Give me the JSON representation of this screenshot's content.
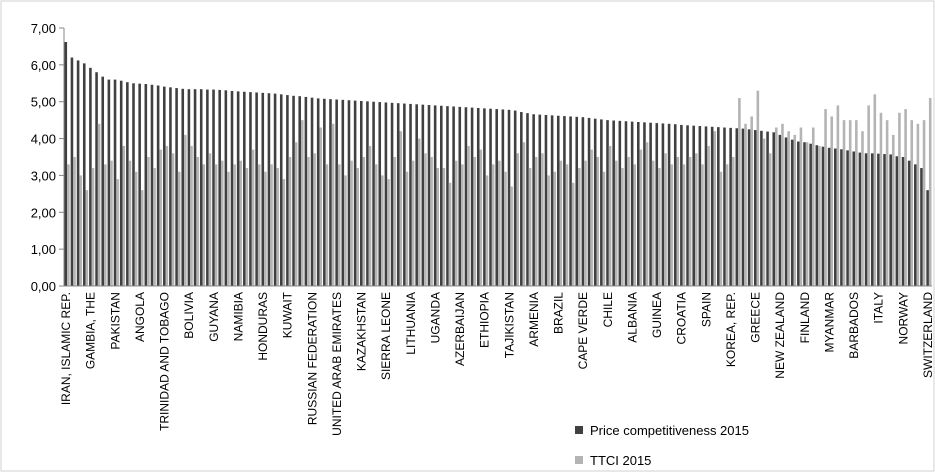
{
  "chart_data": {
    "type": "bar",
    "ylim": [
      0,
      7
    ],
    "yticks": [
      "0,00",
      "1,00",
      "2,00",
      "3,00",
      "4,00",
      "5,00",
      "6,00",
      "7,00"
    ],
    "grid": false,
    "legend_position": "bottom-right",
    "labeled_categories": [
      "IRAN, ISLAMIC REP.",
      "GAMBIA, THE",
      "PAKISTAN",
      "ANGOLA",
      "TRINIDAD AND TOBAGO",
      "BOLIVIA",
      "GUYANA",
      "NAMIBIA",
      "HONDURAS",
      "KUWAIT",
      "RUSSIAN FEDERATION",
      "UNITED ARAB EMIRATES",
      "KAZAKHSTAN",
      "SIERRA LEONE",
      "LITHUANIA",
      "UGANDA",
      "AZERBAIJAN",
      "ETHIOPIA",
      "TAJIKISTAN",
      "ARMENIA",
      "BRAZIL",
      "CAPE VERDE",
      "CHILE",
      "ALBANIA",
      "GUINEA",
      "CROATIA",
      "SPAIN",
      "KOREA, REP.",
      "GREECE",
      "NEW ZEALAND",
      "FINLAND",
      "MYANMAR",
      "BARBADOS",
      "ITALY",
      "NORWAY",
      "SWITZERLAND"
    ],
    "series": [
      {
        "name": "Price competitiveness 2015",
        "color": "#404040",
        "values": [
          6.62,
          6.2,
          6.12,
          6.04,
          5.92,
          5.8,
          5.68,
          5.6,
          5.6,
          5.57,
          5.53,
          5.5,
          5.49,
          5.48,
          5.46,
          5.44,
          5.41,
          5.39,
          5.37,
          5.35,
          5.34,
          5.34,
          5.34,
          5.33,
          5.33,
          5.32,
          5.31,
          5.29,
          5.28,
          5.27,
          5.26,
          5.25,
          5.24,
          5.23,
          5.22,
          5.2,
          5.18,
          5.16,
          5.15,
          5.13,
          5.11,
          5.09,
          5.08,
          5.07,
          5.06,
          5.05,
          5.04,
          5.03,
          5.02,
          5.01,
          5.0,
          4.99,
          4.98,
          4.97,
          4.96,
          4.95,
          4.94,
          4.93,
          4.92,
          4.91,
          4.9,
          4.89,
          4.88,
          4.87,
          4.86,
          4.85,
          4.84,
          4.83,
          4.82,
          4.81,
          4.8,
          4.79,
          4.78,
          4.76,
          4.72,
          4.69,
          4.66,
          4.65,
          4.64,
          4.63,
          4.62,
          4.61,
          4.6,
          4.59,
          4.58,
          4.56,
          4.54,
          4.52,
          4.5,
          4.49,
          4.48,
          4.47,
          4.46,
          4.45,
          4.44,
          4.43,
          4.42,
          4.41,
          4.4,
          4.39,
          4.37,
          4.36,
          4.35,
          4.34,
          4.33,
          4.32,
          4.31,
          4.3,
          4.29,
          4.28,
          4.27,
          4.25,
          4.23,
          4.21,
          4.19,
          4.17,
          4.1,
          4.03,
          3.97,
          3.92,
          3.9,
          3.86,
          3.82,
          3.78,
          3.75,
          3.73,
          3.71,
          3.68,
          3.65,
          3.62,
          3.6,
          3.6,
          3.59,
          3.58,
          3.57,
          3.52,
          3.5,
          3.4,
          3.3,
          3.2,
          2.6
        ]
      },
      {
        "name": "TTCI 2015",
        "color": "#b4b4b4",
        "values": [
          3.3,
          3.5,
          3.0,
          2.6,
          3.2,
          4.4,
          3.3,
          3.4,
          2.9,
          3.8,
          3.4,
          3.1,
          2.6,
          3.5,
          3.2,
          3.7,
          3.8,
          3.6,
          3.1,
          4.1,
          3.8,
          3.5,
          3.3,
          3.6,
          3.3,
          3.4,
          3.1,
          3.3,
          3.4,
          3.2,
          3.7,
          3.3,
          3.1,
          3.3,
          3.2,
          2.9,
          3.5,
          3.9,
          4.5,
          3.5,
          3.6,
          4.3,
          3.3,
          4.4,
          3.3,
          3.0,
          3.4,
          3.2,
          3.5,
          3.8,
          3.3,
          3.0,
          2.9,
          3.5,
          4.2,
          3.1,
          3.4,
          4.0,
          3.6,
          3.5,
          3.2,
          3.2,
          2.8,
          3.4,
          3.3,
          3.8,
          3.5,
          3.7,
          3.0,
          3.3,
          3.4,
          3.1,
          2.7,
          3.6,
          3.9,
          3.2,
          3.5,
          3.6,
          3.0,
          3.1,
          3.4,
          3.3,
          2.8,
          3.2,
          3.4,
          3.7,
          3.5,
          3.1,
          3.8,
          3.4,
          3.2,
          3.5,
          3.3,
          3.7,
          3.9,
          3.4,
          3.2,
          3.6,
          3.3,
          3.5,
          3.3,
          3.5,
          3.6,
          3.3,
          3.8,
          4.2,
          3.1,
          3.3,
          3.5,
          5.1,
          4.4,
          4.6,
          5.3,
          4.0,
          3.6,
          4.3,
          4.4,
          4.2,
          4.1,
          4.3,
          3.9,
          4.3,
          3.8,
          4.8,
          4.6,
          4.9,
          4.5,
          4.5,
          4.5,
          4.2,
          4.9,
          5.2,
          4.7,
          4.5,
          4.1,
          4.7,
          4.8,
          4.5,
          4.4,
          4.5,
          5.1
        ]
      }
    ]
  }
}
